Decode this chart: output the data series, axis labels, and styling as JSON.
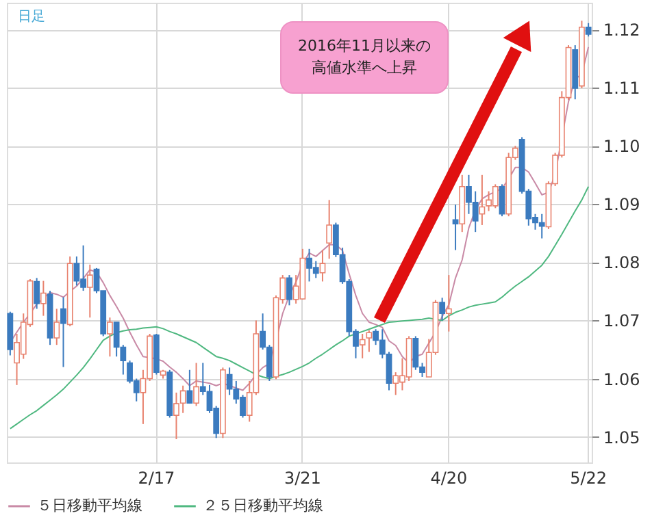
{
  "chart_data": {
    "type": "candlestick",
    "categories": [
      null,
      null,
      null,
      null,
      null,
      null,
      null,
      null,
      null,
      null,
      null,
      null,
      null,
      null,
      null,
      null,
      null,
      null,
      null,
      null,
      null,
      null,
      "2/17",
      null,
      null,
      null,
      null,
      null,
      null,
      null,
      null,
      null,
      null,
      null,
      null,
      null,
      null,
      null,
      null,
      null,
      null,
      null,
      null,
      null,
      "3/21",
      null,
      null,
      null,
      null,
      null,
      null,
      null,
      null,
      null,
      null,
      null,
      null,
      null,
      null,
      null,
      null,
      null,
      null,
      null,
      null,
      null,
      "4/20",
      null,
      null,
      null,
      null,
      null,
      null,
      null,
      null,
      null,
      null,
      null,
      null,
      null,
      null,
      null,
      null,
      null,
      null,
      null,
      null,
      "5/22"
    ],
    "ohlc": [
      [
        1.0712,
        1.0715,
        1.064,
        1.065
      ],
      [
        1.0627,
        1.0677,
        1.0589,
        1.0662
      ],
      [
        1.0642,
        1.0712,
        1.0634,
        1.0697
      ],
      [
        1.0693,
        1.0771,
        1.0689,
        1.0768
      ],
      [
        1.0767,
        1.0773,
        1.072,
        1.0729
      ],
      [
        1.0729,
        1.0768,
        1.0708,
        1.0747
      ],
      [
        1.0745,
        1.0751,
        1.0658,
        1.067
      ],
      [
        1.067,
        1.072,
        1.0658,
        1.0697
      ],
      [
        1.072,
        1.074,
        1.062,
        1.0695
      ],
      [
        1.0693,
        1.081,
        1.069,
        1.0798
      ],
      [
        1.0798,
        1.081,
        1.076,
        1.0768
      ],
      [
        1.0771,
        1.0829,
        1.0751,
        1.0757
      ],
      [
        1.0757,
        1.0796,
        1.0705,
        1.0778
      ],
      [
        1.0788,
        1.079,
        1.0747,
        1.0751
      ],
      [
        1.0751,
        1.0751,
        1.0673,
        1.0677
      ],
      [
        1.0677,
        1.0705,
        1.0638,
        1.0697
      ],
      [
        1.0697,
        1.0697,
        1.0638,
        1.0654
      ],
      [
        1.0654,
        1.0658,
        1.0607,
        1.0631
      ],
      [
        1.0627,
        1.0631,
        1.0592,
        1.0596
      ],
      [
        1.0596,
        1.06,
        1.0561,
        1.0576
      ],
      [
        1.0576,
        1.0615,
        1.0522,
        1.06
      ],
      [
        1.06,
        1.0677,
        1.0596,
        1.0673
      ],
      [
        1.0675,
        1.0677,
        1.0607,
        1.0611
      ],
      [
        1.0606,
        1.0615,
        1.06,
        1.0613
      ],
      [
        1.0611,
        1.0615,
        1.0533,
        1.0537
      ],
      [
        1.0537,
        1.0576,
        1.0496,
        1.0557
      ],
      [
        1.0558,
        1.0588,
        1.0541,
        1.0579
      ],
      [
        1.0579,
        1.0615,
        1.0557,
        1.0558
      ],
      [
        1.0558,
        1.0627,
        1.0553,
        1.0586
      ],
      [
        1.0586,
        1.0627,
        1.0572,
        1.0578
      ],
      [
        1.0578,
        1.0589,
        1.0541,
        1.0545
      ],
      [
        1.0549,
        1.0553,
        1.0498,
        1.0506
      ],
      [
        1.0506,
        1.0619,
        1.0498,
        1.0615
      ],
      [
        1.0607,
        1.0619,
        1.0572,
        1.0582
      ],
      [
        1.0582,
        1.0596,
        1.0557,
        1.0565
      ],
      [
        1.0568,
        1.0572,
        1.0533,
        1.0537
      ],
      [
        1.0537,
        1.0596,
        1.0526,
        1.0576
      ],
      [
        1.0576,
        1.07,
        1.0572,
        1.0677
      ],
      [
        1.0681,
        1.0712,
        1.065,
        1.0654
      ],
      [
        1.0654,
        1.0658,
        1.0596,
        1.0603
      ],
      [
        1.0603,
        1.0743,
        1.0599,
        1.0739
      ],
      [
        1.0736,
        1.0778,
        1.0729,
        1.0773
      ],
      [
        1.0773,
        1.0778,
        1.0726,
        1.0736
      ],
      [
        1.0736,
        1.0778,
        1.0729,
        1.0759
      ],
      [
        1.0737,
        1.0823,
        1.0736,
        1.0807
      ],
      [
        1.0807,
        1.0823,
        1.0767,
        1.079
      ],
      [
        1.0791,
        1.0802,
        1.0773,
        1.0781
      ],
      [
        1.0782,
        1.0821,
        1.0767,
        1.0798
      ],
      [
        1.0833,
        1.0907,
        1.0806,
        1.0864
      ],
      [
        1.0864,
        1.0868,
        1.0809,
        1.0813
      ],
      [
        1.0813,
        1.0825,
        1.0763,
        1.0767
      ],
      [
        1.0767,
        1.0771,
        1.0673,
        1.0681
      ],
      [
        1.0681,
        1.0685,
        1.0635,
        1.0656
      ],
      [
        1.0658,
        1.0677,
        1.0635,
        1.0667
      ],
      [
        1.067,
        1.0683,
        1.0646,
        1.0679
      ],
      [
        1.0681,
        1.0685,
        1.0658,
        1.0666
      ],
      [
        1.0666,
        1.0685,
        1.0635,
        1.0642
      ],
      [
        1.0642,
        1.0646,
        1.058,
        1.0592
      ],
      [
        1.0592,
        1.0611,
        1.0572,
        1.0605
      ],
      [
        1.0594,
        1.0635,
        1.058,
        1.0605
      ],
      [
        1.0603,
        1.0673,
        1.0596,
        1.0669
      ],
      [
        1.0669,
        1.0673,
        1.0615,
        1.062
      ],
      [
        1.062,
        1.0627,
        1.0603,
        1.0611
      ],
      [
        1.0603,
        1.0668,
        1.0603,
        1.0645
      ],
      [
        1.0645,
        1.0735,
        1.0641,
        1.0731
      ],
      [
        1.0731,
        1.0739,
        1.07,
        1.0712
      ],
      [
        1.0712,
        1.0778,
        1.0681,
        1.072
      ],
      [
        1.0873,
        1.0899,
        1.0821,
        1.0866
      ],
      [
        1.0866,
        1.095,
        1.0852,
        1.093
      ],
      [
        1.093,
        1.095,
        1.0883,
        1.0903
      ],
      [
        1.0903,
        1.0922,
        1.0852,
        1.0871
      ],
      [
        1.0883,
        1.095,
        1.0864,
        1.0895
      ],
      [
        1.0897,
        1.0922,
        1.0888,
        1.0907
      ],
      [
        1.0897,
        1.0934,
        1.0893,
        1.093
      ],
      [
        1.093,
        1.0934,
        1.0879,
        1.0883
      ],
      [
        1.0883,
        1.0988,
        1.0879,
        1.098
      ],
      [
        1.098,
        1.1,
        1.0976,
        1.0996
      ],
      [
        1.1011,
        1.1015,
        1.0918,
        1.0922
      ],
      [
        1.0922,
        1.0926,
        1.0863,
        1.0875
      ],
      [
        1.0877,
        1.0883,
        1.0856,
        1.0868
      ],
      [
        1.0868,
        1.0883,
        1.0841,
        1.0862
      ],
      [
        1.0861,
        1.0939,
        1.0857,
        1.0935
      ],
      [
        1.0935,
        1.0988,
        1.0931,
        1.0984
      ],
      [
        1.0984,
        1.1094,
        1.098,
        1.1083
      ],
      [
        1.1083,
        1.1173,
        1.1079,
        1.1169
      ],
      [
        1.1165,
        1.1173,
        1.108,
        1.1099
      ],
      [
        1.1103,
        1.1215,
        1.1099,
        1.1204
      ],
      [
        1.1204,
        1.1211,
        1.1188,
        1.1192
      ]
    ],
    "colors": [
      "#3b7bbf",
      "#e8826e",
      "#e8826e",
      "#e8826e",
      "#3b7bbf",
      "#e8826e",
      "#3b7bbf",
      "#e8826e",
      "#3b7bbf",
      "#e8826e",
      "#3b7bbf",
      "#3b7bbf",
      "#e8826e",
      "#3b7bbf",
      "#3b7bbf",
      "#e8826e",
      "#3b7bbf",
      "#3b7bbf",
      "#3b7bbf",
      "#3b7bbf",
      "#e8826e",
      "#e8826e",
      "#3b7bbf",
      "#e8826e",
      "#3b7bbf",
      "#e8826e",
      "#e8826e",
      "#3b7bbf",
      "#e8826e",
      "#3b7bbf",
      "#3b7bbf",
      "#3b7bbf",
      "#e8826e",
      "#3b7bbf",
      "#3b7bbf",
      "#3b7bbf",
      "#e8826e",
      "#e8826e",
      "#3b7bbf",
      "#3b7bbf",
      "#e8826e",
      "#e8826e",
      "#3b7bbf",
      "#e8826e",
      "#e8826e",
      "#3b7bbf",
      "#3b7bbf",
      "#e8826e",
      "#e8826e",
      "#3b7bbf",
      "#3b7bbf",
      "#3b7bbf",
      "#3b7bbf",
      "#e8826e",
      "#e8826e",
      "#3b7bbf",
      "#3b7bbf",
      "#3b7bbf",
      "#e8826e",
      "#e8826e",
      "#e8826e",
      "#3b7bbf",
      "#3b7bbf",
      "#e8826e",
      "#e8826e",
      "#3b7bbf",
      "#e8826e",
      "#3b7bbf",
      "#e8826e",
      "#3b7bbf",
      "#3b7bbf",
      "#e8826e",
      "#e8826e",
      "#e8826e",
      "#3b7bbf",
      "#e8826e",
      "#e8826e",
      "#3b7bbf",
      "#3b7bbf",
      "#3b7bbf",
      "#3b7bbf",
      "#e8826e",
      "#e8826e",
      "#e8826e",
      "#e8826e",
      "#3b7bbf",
      "#e8826e",
      "#3b7bbf"
    ],
    "series": [
      {
        "name": "５日移動平均線",
        "type": "line",
        "color": "#c98aa6",
        "values": [
          1.0662,
          1.068,
          1.0697,
          1.0712,
          1.0728,
          1.0738,
          1.0748,
          1.0745,
          1.074,
          1.075,
          1.0759,
          1.0772,
          1.0787,
          1.0783,
          1.0765,
          1.0743,
          1.0724,
          1.0704,
          1.068,
          1.0658,
          1.0638,
          1.0636,
          1.0634,
          1.063,
          1.062,
          1.0611,
          1.06,
          1.0588,
          1.0596,
          1.0594,
          1.0592,
          1.0588,
          1.0592,
          1.0588,
          1.0584,
          1.058,
          1.0592,
          1.0607,
          1.0619,
          1.0626,
          1.0665,
          1.0712,
          1.0743,
          1.0766,
          1.0797,
          1.0816,
          1.081,
          1.082,
          1.083,
          1.083,
          1.082,
          1.078,
          1.0743,
          1.0712,
          1.0697,
          1.0693,
          1.0688,
          1.0665,
          1.0657,
          1.0638,
          1.0627,
          1.0638,
          1.0642,
          1.0661,
          1.068,
          1.0707,
          1.0727,
          1.0773,
          1.0804,
          1.0859,
          1.089,
          1.0909,
          1.0916,
          1.0921,
          1.0927,
          1.0943,
          1.0963,
          1.0963,
          1.0955,
          1.0936,
          1.0916,
          1.092,
          1.0951,
          1.1014,
          1.1076,
          1.1115,
          1.1123,
          1.117
        ]
      },
      {
        "name": "２５日移動平均線",
        "type": "line",
        "color": "#4fb880",
        "values": [
          1.0514,
          1.0522,
          1.053,
          1.0538,
          1.0545,
          1.0554,
          1.0563,
          1.0572,
          1.0582,
          1.0594,
          1.0606,
          1.0619,
          1.0634,
          1.065,
          1.0666,
          1.0673,
          1.0679,
          1.0682,
          1.0684,
          1.0685,
          1.0687,
          1.0688,
          1.0689,
          1.0686,
          1.0681,
          1.0677,
          1.0672,
          1.0667,
          1.0662,
          1.0654,
          1.0646,
          1.0638,
          1.0635,
          1.0631,
          1.0625,
          1.0619,
          1.0613,
          1.0607,
          1.0603,
          1.06,
          1.0604,
          1.0607,
          1.0611,
          1.0616,
          1.0621,
          1.0627,
          1.0635,
          1.0642,
          1.065,
          1.0658,
          1.0665,
          1.0673,
          1.0677,
          1.0681,
          1.0685,
          1.0689,
          1.0693,
          1.0697,
          1.0698,
          1.0699,
          1.07,
          1.0701,
          1.0702,
          1.0704,
          1.0702,
          1.07,
          1.0708,
          1.0714,
          1.0718,
          1.0723,
          1.0726,
          1.0728,
          1.073,
          1.0732,
          1.074,
          1.075,
          1.0759,
          1.0767,
          1.0775,
          1.0785,
          1.0795,
          1.081,
          1.0829,
          1.0848,
          1.0868,
          1.0888,
          1.0907,
          1.093
        ]
      }
    ],
    "ylim": [
      1.0456,
      1.1246
    ],
    "yticks": [
      1.05,
      1.06,
      1.07,
      1.08,
      1.09,
      {
        "value": 1.1,
        "label": "1.10"
      },
      1.11,
      1.12
    ],
    "grid": true,
    "legend": "bottom",
    "annotations": [
      "日足",
      "2016年11月以来の",
      "高値水準へ上昇"
    ]
  }
}
